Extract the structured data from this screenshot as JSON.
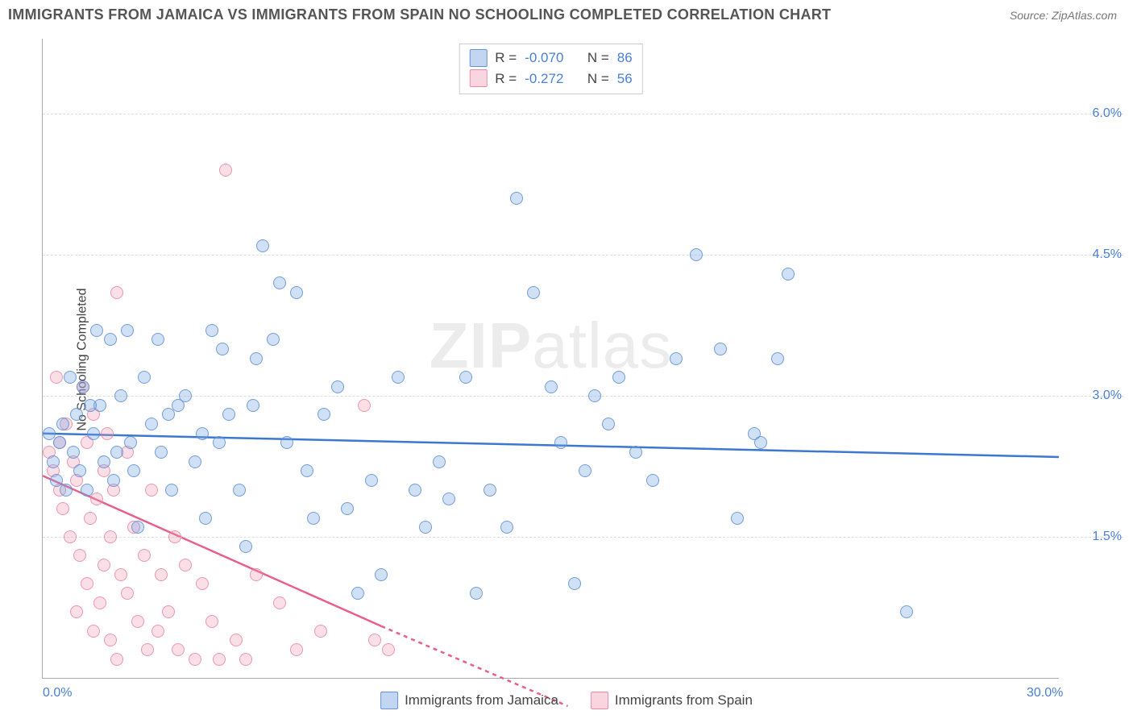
{
  "header": {
    "title": "IMMIGRANTS FROM JAMAICA VS IMMIGRANTS FROM SPAIN NO SCHOOLING COMPLETED CORRELATION CHART",
    "source_label": "Source:",
    "source_name": "ZipAtlas.com"
  },
  "chart": {
    "type": "scatter",
    "ylabel": "No Schooling Completed",
    "watermark_bold": "ZIP",
    "watermark_light": "atlas",
    "xlim": [
      0,
      30
    ],
    "ylim": [
      0,
      6.8
    ],
    "xticks": [
      {
        "v": 0,
        "label": "0.0%"
      },
      {
        "v": 30,
        "label": "30.0%"
      }
    ],
    "yticks": [
      {
        "v": 1.5,
        "label": "1.5%"
      },
      {
        "v": 3.0,
        "label": "3.0%"
      },
      {
        "v": 4.5,
        "label": "4.5%"
      },
      {
        "v": 6.0,
        "label": "6.0%"
      }
    ],
    "background_color": "#ffffff",
    "grid_color": "#dddddd",
    "marker_size": 16,
    "series_a": {
      "label": "Immigrants from Jamaica",
      "color_fill": "rgba(120,165,225,0.35)",
      "color_stroke": "#5a8cd2",
      "trend_color": "#3d78d0",
      "R": "-0.070",
      "N": "86",
      "trend": {
        "x1": 0,
        "y1": 2.6,
        "x2": 30,
        "y2": 2.35
      },
      "points": [
        [
          0.3,
          2.3
        ],
        [
          0.4,
          2.1
        ],
        [
          0.5,
          2.5
        ],
        [
          0.6,
          2.7
        ],
        [
          0.7,
          2.0
        ],
        [
          0.8,
          3.2
        ],
        [
          0.9,
          2.4
        ],
        [
          1.0,
          2.8
        ],
        [
          1.1,
          2.2
        ],
        [
          1.2,
          3.1
        ],
        [
          1.3,
          2.0
        ],
        [
          1.5,
          2.6
        ],
        [
          1.6,
          3.7
        ],
        [
          1.7,
          2.9
        ],
        [
          1.8,
          2.3
        ],
        [
          2.0,
          3.6
        ],
        [
          2.1,
          2.1
        ],
        [
          2.3,
          3.0
        ],
        [
          2.5,
          3.7
        ],
        [
          2.6,
          2.5
        ],
        [
          2.7,
          2.2
        ],
        [
          2.8,
          1.6
        ],
        [
          3.0,
          3.2
        ],
        [
          3.2,
          2.7
        ],
        [
          3.4,
          3.6
        ],
        [
          3.5,
          2.4
        ],
        [
          3.7,
          2.8
        ],
        [
          4.0,
          2.9
        ],
        [
          4.2,
          3.0
        ],
        [
          4.5,
          2.3
        ],
        [
          4.7,
          2.6
        ],
        [
          5.0,
          3.7
        ],
        [
          5.2,
          2.5
        ],
        [
          5.5,
          2.8
        ],
        [
          5.8,
          2.0
        ],
        [
          6.0,
          1.4
        ],
        [
          6.2,
          2.9
        ],
        [
          6.5,
          4.6
        ],
        [
          6.8,
          3.6
        ],
        [
          7.0,
          4.2
        ],
        [
          7.2,
          2.5
        ],
        [
          7.5,
          4.1
        ],
        [
          7.8,
          2.2
        ],
        [
          8.0,
          1.7
        ],
        [
          8.3,
          2.8
        ],
        [
          8.7,
          3.1
        ],
        [
          9.0,
          1.8
        ],
        [
          9.3,
          0.9
        ],
        [
          9.7,
          2.1
        ],
        [
          10.0,
          1.1
        ],
        [
          10.5,
          3.2
        ],
        [
          11.0,
          2.0
        ],
        [
          11.3,
          1.6
        ],
        [
          11.7,
          2.3
        ],
        [
          12.0,
          1.9
        ],
        [
          12.5,
          3.2
        ],
        [
          12.8,
          0.9
        ],
        [
          13.2,
          2.0
        ],
        [
          13.7,
          1.6
        ],
        [
          14.0,
          5.1
        ],
        [
          14.5,
          4.1
        ],
        [
          15.0,
          3.1
        ],
        [
          15.3,
          2.5
        ],
        [
          15.7,
          1.0
        ],
        [
          16.0,
          2.2
        ],
        [
          16.3,
          3.0
        ],
        [
          16.7,
          2.7
        ],
        [
          17.0,
          3.2
        ],
        [
          17.5,
          2.4
        ],
        [
          18.0,
          2.1
        ],
        [
          18.7,
          3.4
        ],
        [
          19.3,
          4.5
        ],
        [
          20.0,
          3.5
        ],
        [
          20.5,
          1.7
        ],
        [
          21.0,
          2.6
        ],
        [
          21.2,
          2.5
        ],
        [
          21.7,
          3.4
        ],
        [
          22.0,
          4.3
        ],
        [
          25.5,
          0.7
        ],
        [
          5.3,
          3.5
        ],
        [
          6.3,
          3.4
        ],
        [
          3.8,
          2.0
        ],
        [
          4.8,
          1.7
        ],
        [
          2.2,
          2.4
        ],
        [
          1.4,
          2.9
        ],
        [
          0.2,
          2.6
        ]
      ]
    },
    "series_b": {
      "label": "Immigrants from Spain",
      "color_fill": "rgba(240,150,175,0.3)",
      "color_stroke": "#e6789a",
      "trend_color": "#e85f89",
      "R": "-0.272",
      "N": "56",
      "trend_solid": {
        "x1": 0,
        "y1": 2.15,
        "x2": 10,
        "y2": 0.55
      },
      "trend_dashed": {
        "x1": 10,
        "y1": 0.55,
        "x2": 15.5,
        "y2": -0.3
      },
      "points": [
        [
          0.2,
          2.4
        ],
        [
          0.3,
          2.2
        ],
        [
          0.4,
          3.2
        ],
        [
          0.5,
          2.0
        ],
        [
          0.5,
          2.5
        ],
        [
          0.6,
          1.8
        ],
        [
          0.7,
          2.7
        ],
        [
          0.8,
          1.5
        ],
        [
          0.9,
          2.3
        ],
        [
          1.0,
          0.7
        ],
        [
          1.0,
          2.1
        ],
        [
          1.1,
          1.3
        ],
        [
          1.2,
          3.1
        ],
        [
          1.3,
          1.0
        ],
        [
          1.3,
          2.5
        ],
        [
          1.4,
          1.7
        ],
        [
          1.5,
          0.5
        ],
        [
          1.5,
          2.8
        ],
        [
          1.6,
          1.9
        ],
        [
          1.7,
          0.8
        ],
        [
          1.8,
          2.2
        ],
        [
          1.8,
          1.2
        ],
        [
          1.9,
          2.6
        ],
        [
          2.0,
          0.4
        ],
        [
          2.0,
          1.5
        ],
        [
          2.1,
          2.0
        ],
        [
          2.2,
          0.2
        ],
        [
          2.2,
          4.1
        ],
        [
          2.3,
          1.1
        ],
        [
          2.5,
          0.9
        ],
        [
          2.5,
          2.4
        ],
        [
          2.7,
          1.6
        ],
        [
          2.8,
          0.6
        ],
        [
          3.0,
          1.3
        ],
        [
          3.1,
          0.3
        ],
        [
          3.2,
          2.0
        ],
        [
          3.4,
          0.5
        ],
        [
          3.5,
          1.1
        ],
        [
          3.7,
          0.7
        ],
        [
          3.9,
          1.5
        ],
        [
          4.0,
          0.3
        ],
        [
          4.2,
          1.2
        ],
        [
          4.5,
          0.2
        ],
        [
          4.7,
          1.0
        ],
        [
          5.0,
          0.6
        ],
        [
          5.2,
          0.2
        ],
        [
          5.4,
          5.4
        ],
        [
          5.7,
          0.4
        ],
        [
          6.0,
          0.2
        ],
        [
          6.3,
          1.1
        ],
        [
          7.0,
          0.8
        ],
        [
          7.5,
          0.3
        ],
        [
          8.2,
          0.5
        ],
        [
          9.5,
          2.9
        ],
        [
          9.8,
          0.4
        ],
        [
          10.2,
          0.3
        ]
      ]
    }
  },
  "legend_labels": {
    "R": "R =",
    "N": "N ="
  }
}
